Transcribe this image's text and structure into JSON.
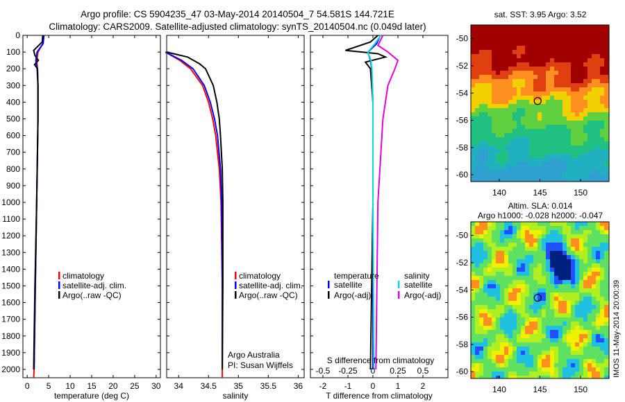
{
  "title_line1": "Argo profile: CS 5904235_47 03-May-2014 20140504_7 54.581S 144.721E",
  "title_line2": "Climatology: CARS2009. Satellite-adjusted climatology: synTS_20140504.nc (0.049d later)",
  "depth_ticks": [
    "0",
    "100",
    "200",
    "300",
    "400",
    "500",
    "600",
    "700",
    "800",
    "900",
    "1000",
    "1100",
    "1200",
    "1300",
    "1400",
    "1500",
    "1600",
    "1700",
    "1800",
    "1900",
    "2000"
  ],
  "colors": {
    "climatology": "#ff0000",
    "satellite": "#0000ff",
    "argo": "#000000",
    "cyan": "#00e0e0",
    "magenta": "#e000e0"
  },
  "panel_temp": {
    "xlabel": "temperature (deg C)",
    "xticks": [
      "0",
      "5",
      "10",
      "15",
      "20",
      "25",
      "30"
    ],
    "legend": [
      "climatology",
      "satellite-adj. clim.",
      "Argo(..raw -QC)"
    ]
  },
  "panel_sal": {
    "xlabel": "salinity",
    "xticks": [
      "34",
      "34.5",
      "35",
      "35.5",
      "36"
    ],
    "legend": [
      "climatology",
      "satellite-adj. clim.",
      "Argo(..raw -QC)"
    ],
    "credit1": "Argo Australia",
    "credit2": "PI: Susan Wijffels"
  },
  "panel_diff": {
    "xlabel": "T difference from climatology",
    "top_label": "S difference from climatology",
    "xticks_bottom": [
      "-2",
      "-1",
      "0",
      "1",
      "2"
    ],
    "xticks_top": [
      "-0.5",
      "-0.25",
      "0",
      "0.25",
      "0.5"
    ],
    "legend_head_t": "temperature",
    "legend_head_s": "salinity",
    "legend_t": [
      "satellite",
      "Argo(-adj)"
    ],
    "legend_s": [
      "satellite",
      "Argo(-adj)"
    ]
  },
  "map_sst": {
    "title": "sat. SST: 3.95 Argo: 3.52",
    "yticks": [
      "-50",
      "-52",
      "-54",
      "-56",
      "-58",
      "-60"
    ],
    "xticks": [
      "140",
      "145",
      "150"
    ]
  },
  "map_sla": {
    "title1": "Altim. SLA: 0.014",
    "title2": "Argo h1000: -0.028 h2000: -0.047",
    "yticks": [
      "-50",
      "-52",
      "-54",
      "-56",
      "-58",
      "-60"
    ],
    "xticks": [
      "140",
      "145",
      "150"
    ]
  },
  "stamp": "IMOS 11-May-2014 20:00:39",
  "chart_data": [
    {
      "type": "line",
      "ylabel": "",
      "xlabel": "temperature (deg C)",
      "xlim": [
        -1,
        31
      ],
      "ylim": [
        2050,
        0
      ],
      "series": [
        {
          "name": "climatology",
          "y": [
            0,
            50,
            100,
            150,
            200,
            300,
            500,
            700,
            1000,
            1500,
            2000,
            2050
          ],
          "x": [
            3.7,
            3.6,
            2.5,
            2.2,
            2.4,
            2.5,
            2.5,
            2.4,
            2.2,
            1.9,
            1.6,
            1.5
          ]
        },
        {
          "name": "satellite-adj. clim.",
          "y": [
            0,
            50,
            100,
            150,
            200,
            300,
            500,
            1000,
            1500,
            2000
          ],
          "x": [
            3.9,
            3.7,
            2.3,
            2.0,
            2.3,
            2.5,
            2.5,
            2.2,
            1.9,
            1.6
          ]
        },
        {
          "name": "Argo(..raw -QC)",
          "y": [
            0,
            40,
            90,
            120,
            150,
            175,
            200,
            300,
            500,
            1000,
            1500,
            2000
          ],
          "x": [
            3.6,
            3.5,
            1.5,
            1.8,
            2.6,
            1.7,
            2.4,
            2.5,
            2.5,
            2.2,
            1.8,
            1.5
          ]
        }
      ]
    },
    {
      "type": "line",
      "xlabel": "salinity",
      "xlim": [
        33.8,
        36.1
      ],
      "ylim": [
        2050,
        0
      ],
      "series": [
        {
          "name": "climatology",
          "y": [
            100,
            150,
            200,
            300,
            400,
            500,
            600,
            800,
            1000,
            1500,
            2000,
            2050
          ],
          "x": [
            33.78,
            34.02,
            34.2,
            34.4,
            34.5,
            34.57,
            34.62,
            34.68,
            34.71,
            34.73,
            34.73,
            34.73
          ]
        },
        {
          "name": "satellite-adj. clim.",
          "y": [
            100,
            150,
            200,
            300,
            400,
            500,
            600,
            800,
            1000,
            1500,
            2000
          ],
          "x": [
            33.78,
            34.05,
            34.24,
            34.43,
            34.53,
            34.6,
            34.65,
            34.7,
            34.72,
            34.73,
            34.73
          ]
        },
        {
          "name": "Argo(..raw -QC)",
          "y": [
            100,
            130,
            170,
            200,
            300,
            400,
            500,
            600,
            800,
            1000,
            1500,
            2000
          ],
          "x": [
            33.8,
            34.15,
            34.35,
            34.45,
            34.58,
            34.64,
            34.68,
            34.7,
            34.73,
            34.74,
            34.74,
            34.73
          ]
        }
      ]
    },
    {
      "type": "line",
      "xlabel": "T difference from climatology",
      "top_xlabel": "S difference from climatology",
      "xlim": [
        -2.5,
        3
      ],
      "ylim": [
        2050,
        0
      ],
      "series": [
        {
          "name": "temperature satellite",
          "y": [
            0,
            50,
            100,
            150,
            200,
            400,
            1000,
            1500,
            2000
          ],
          "x": [
            0.3,
            0.15,
            -0.2,
            -0.1,
            -0.05,
            0,
            0,
            0,
            0
          ]
        },
        {
          "name": "temperature Argo(-adj)",
          "y": [
            0,
            40,
            90,
            110,
            130,
            160,
            200,
            400,
            1000,
            1500,
            2000
          ],
          "x": [
            0.2,
            -0.1,
            -1.1,
            0.2,
            0.5,
            -0.3,
            -0.1,
            0,
            0,
            -0.05,
            -0.1
          ]
        },
        {
          "name": "salinity satellite",
          "y": [
            0,
            50,
            100,
            150,
            200,
            400,
            1000,
            2000
          ],
          "x": [
            0.08,
            0.02,
            -0.05,
            -0.02,
            -0.01,
            0,
            0,
            0.01
          ]
        },
        {
          "name": "salinity Argo(-adj)",
          "y": [
            0,
            60,
            100,
            150,
            200,
            300,
            500,
            1000,
            2000
          ],
          "x": [
            0.1,
            0.05,
            0.15,
            0.25,
            0.22,
            0.15,
            0.1,
            0.05,
            0.03
          ]
        }
      ]
    }
  ]
}
